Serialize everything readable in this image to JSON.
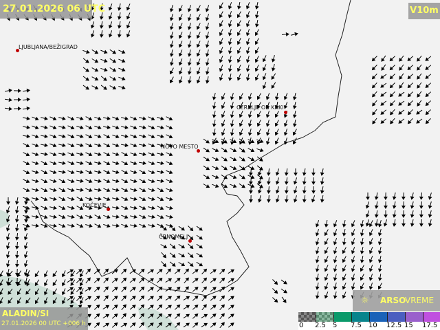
{
  "header": {
    "datetime": "27.01.2026 06 UTC",
    "variable": "V10m"
  },
  "model": {
    "name": "ALADIN/SI",
    "run": "27.01.2026 00 UTC +006 h"
  },
  "brand": {
    "icon": "sun-wind-icon",
    "name_bold": "ARSO",
    "name_light": "VREME"
  },
  "cities": [
    {
      "name": "LJUBLJANA/BEŽIGRAD"
    },
    {
      "name": "CERKLJE OB KRKI"
    },
    {
      "name": "NOVO MESTO"
    },
    {
      "name": "KOČEVJE"
    },
    {
      "name": "ČRNOMELJ"
    }
  ],
  "legend": {
    "labels": [
      "0",
      "2.5",
      "5",
      "7.5",
      "10",
      "12.5",
      "15",
      "17.5"
    ],
    "colors": [
      "#555555",
      "#5a8a70",
      "#0a9a6a",
      "#08848c",
      "#1a62b8",
      "#4a5ec0",
      "#9a60cc",
      "#c050e0"
    ]
  }
}
